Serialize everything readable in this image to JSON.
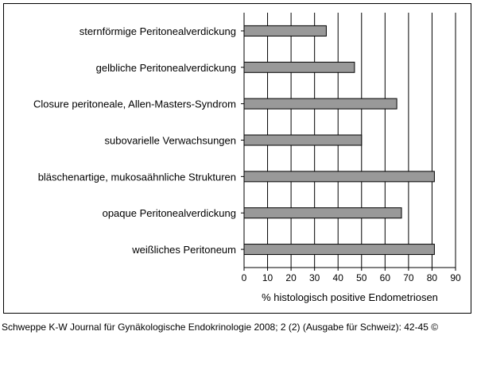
{
  "chart_data": {
    "type": "bar",
    "orientation": "horizontal",
    "categories": [
      "sternförmige Peritonealverdickung",
      "gelbliche Peritonealverdickung",
      "Closure peritoneale, Allen-Masters-Syndrom",
      "subovarielle Verwachsungen",
      "bläschenartige, mukosaähnliche Strukturen",
      "opaque Peritonealverdickung",
      "weißliches Peritoneum"
    ],
    "values": [
      35,
      47,
      65,
      50,
      81,
      67,
      81
    ],
    "xlabel": "% histologisch positive Endometriosen",
    "ylabel": "",
    "xlim": [
      0,
      90
    ],
    "xticks": [
      0,
      10,
      20,
      30,
      40,
      50,
      60,
      70,
      80,
      90
    ],
    "grid": "vertical",
    "colors": {
      "bar": "#999999",
      "bar_edge": "#000000",
      "grid": "#000000"
    }
  },
  "caption": "Schweppe K-W Journal für Gynäkologische Endokrinologie 2008; 2 (2) (Ausgabe für Schweiz): 42-45 ©"
}
